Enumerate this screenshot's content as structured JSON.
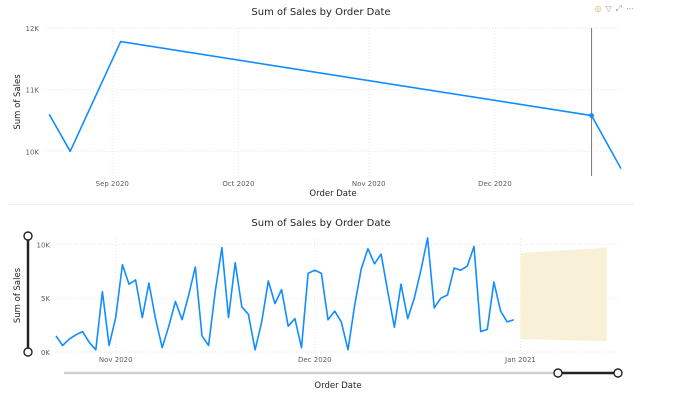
{
  "header": {
    "icons": [
      "focus-icon",
      "filter-icon",
      "expand-icon",
      "more-options-icon"
    ]
  },
  "colors": {
    "series": "#118dff",
    "forecast_band": "#f7efd0",
    "slider": "#222222"
  },
  "chart_data": [
    {
      "type": "line",
      "title": "Sum of Sales by Order Date",
      "xlabel": "Order Date",
      "ylabel": "Sum of Sales",
      "x_ticks": [
        {
          "label": "Sep 2020",
          "date": "2020-09-01"
        },
        {
          "label": "Oct 2020",
          "date": "2020-10-01"
        },
        {
          "label": "Nov 2020",
          "date": "2020-11-01"
        },
        {
          "label": "Dec 2020",
          "date": "2020-12-01"
        }
      ],
      "y_ticks": [
        {
          "label": "10K",
          "value": 10000
        },
        {
          "label": "11K",
          "value": 11000
        },
        {
          "label": "12K",
          "value": 12000
        }
      ],
      "xlim": [
        "2020-08-16",
        "2020-12-31"
      ],
      "ylim": [
        9600,
        12000
      ],
      "grid": true,
      "hover_line_date": "2020-12-24",
      "series": [
        {
          "x": [
            "2020-08-17",
            "2020-08-22",
            "2020-09-03",
            "2020-12-24",
            "2020-12-31"
          ],
          "values": [
            10600,
            10000,
            11780,
            10580,
            9720
          ]
        }
      ]
    },
    {
      "type": "line",
      "title": "Sum of Sales by Order Date",
      "xlabel": "Order Date",
      "ylabel": "Sum of Sales",
      "x_ticks": [
        {
          "label": "Nov 2020",
          "date": "2020-11-01"
        },
        {
          "label": "Dec 2020",
          "date": "2020-12-01"
        },
        {
          "label": "Jan 2021",
          "date": "2021-01-01"
        }
      ],
      "y_ticks": [
        {
          "label": "0K",
          "value": 0
        },
        {
          "label": "5K",
          "value": 5000
        },
        {
          "label": "10K",
          "value": 10000
        }
      ],
      "xlim": [
        "2020-10-23",
        "2021-01-16"
      ],
      "ylim": [
        0,
        10500
      ],
      "grid": true,
      "series": [
        {
          "x": [
            "2020-10-23",
            "2020-10-24",
            "2020-10-25",
            "2020-10-26",
            "2020-10-27",
            "2020-10-28",
            "2020-10-29",
            "2020-10-30",
            "2020-10-31",
            "2020-11-01",
            "2020-11-02",
            "2020-11-03",
            "2020-11-04",
            "2020-11-05",
            "2020-11-06",
            "2020-11-07",
            "2020-11-08",
            "2020-11-09",
            "2020-11-10",
            "2020-11-11",
            "2020-11-12",
            "2020-11-13",
            "2020-11-14",
            "2020-11-15",
            "2020-11-16",
            "2020-11-17",
            "2020-11-18",
            "2020-11-19",
            "2020-11-20",
            "2020-11-21",
            "2020-11-22",
            "2020-11-23",
            "2020-11-24",
            "2020-11-25",
            "2020-11-26",
            "2020-11-27",
            "2020-11-28",
            "2020-11-29",
            "2020-11-30",
            "2020-12-01",
            "2020-12-02",
            "2020-12-03",
            "2020-12-04",
            "2020-12-05",
            "2020-12-06",
            "2020-12-07",
            "2020-12-08",
            "2020-12-09",
            "2020-12-10",
            "2020-12-11",
            "2020-12-12",
            "2020-12-13",
            "2020-12-14",
            "2020-12-15",
            "2020-12-16",
            "2020-12-17",
            "2020-12-18",
            "2020-12-19",
            "2020-12-20",
            "2020-12-21",
            "2020-12-22",
            "2020-12-23",
            "2020-12-24",
            "2020-12-25",
            "2020-12-26",
            "2020-12-27",
            "2020-12-28",
            "2020-12-29",
            "2020-12-30",
            "2020-12-31"
          ],
          "values": [
            1500,
            600,
            1200,
            1600,
            1900,
            900,
            200,
            5600,
            600,
            3200,
            8100,
            6300,
            6700,
            3200,
            6400,
            3100,
            400,
            2400,
            4700,
            3000,
            5300,
            7900,
            1500,
            600,
            5600,
            9700,
            3200,
            8300,
            4200,
            3500,
            200,
            2800,
            6600,
            4500,
            5800,
            2400,
            3100,
            400,
            7300,
            7600,
            7300,
            3000,
            3800,
            2800,
            200,
            4300,
            7700,
            9600,
            8200,
            9100,
            5600,
            2300,
            6300,
            3100,
            5000,
            7600,
            10600,
            4100,
            5000,
            5300,
            7800,
            7600,
            8000,
            9800,
            1900,
            2100,
            6500,
            3800,
            2800,
            3000
          ]
        }
      ],
      "forecast": {
        "x": [
          "2021-01-01",
          "2021-01-14"
        ],
        "lower": [
          1200,
          1000
        ],
        "upper": [
          9200,
          9700
        ]
      },
      "range_slider": {
        "start": "2020-10-23",
        "end": "2021-01-16",
        "y_handles": [
          "top",
          "bottom"
        ]
      }
    }
  ]
}
